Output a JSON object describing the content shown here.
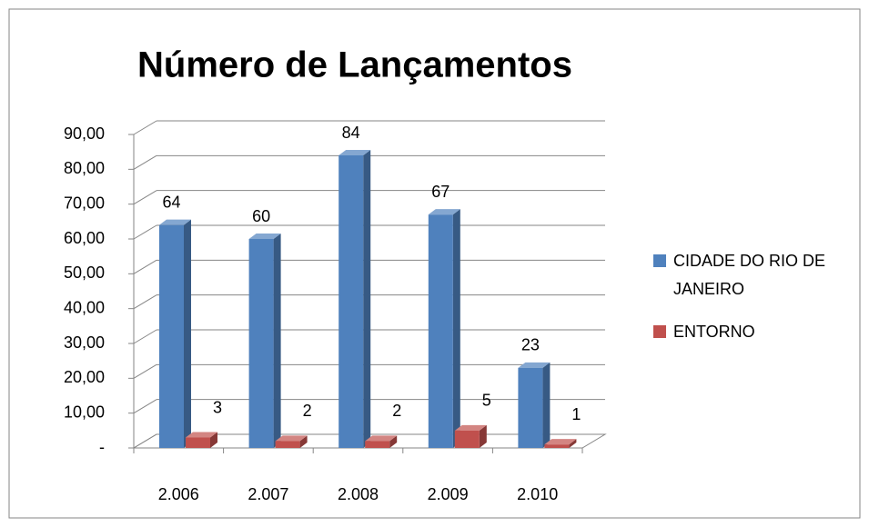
{
  "chart_data": {
    "type": "bar3d",
    "title": "Número de Lançamentos",
    "categories": [
      "2.006",
      "2.007",
      "2.008",
      "2.009",
      "2.010"
    ],
    "series": [
      {
        "name": "CIDADE DO RIO DE JANEIRO",
        "color": "#4f81bd",
        "values": [
          64,
          60,
          84,
          67,
          23
        ]
      },
      {
        "name": "ENTORNO",
        "color": "#c0504d",
        "values": [
          3,
          2,
          2,
          5,
          1
        ]
      }
    ],
    "ylim": [
      0,
      90
    ],
    "yticks": [
      {
        "value": 0,
        "label": "-"
      },
      {
        "value": 10,
        "label": "10,00"
      },
      {
        "value": 20,
        "label": "20,00"
      },
      {
        "value": 30,
        "label": "30,00"
      },
      {
        "value": 40,
        "label": "40,00"
      },
      {
        "value": 50,
        "label": "50,00"
      },
      {
        "value": 60,
        "label": "60,00"
      },
      {
        "value": 70,
        "label": "70,00"
      },
      {
        "value": 80,
        "label": "80,00"
      },
      {
        "value": 90,
        "label": "90,00"
      }
    ],
    "grid": true,
    "legend": "right"
  }
}
